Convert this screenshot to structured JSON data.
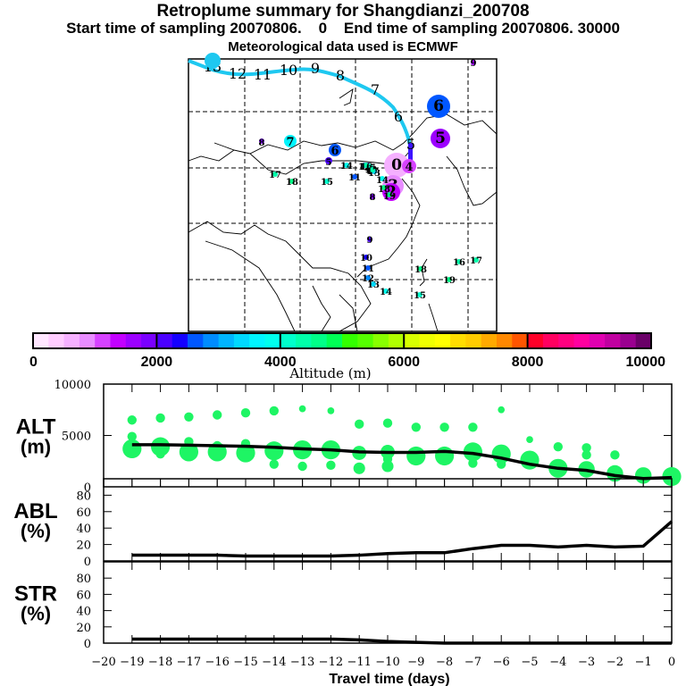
{
  "header": {
    "title": "Retroplume summary for Shangdianzi_200708",
    "subtitle": "Start time of sampling 20070806.    0    End time of sampling 20070806. 30000",
    "met_note": "Meteorological data used is ECMWF"
  },
  "colorbar": {
    "label": "Altitude (m)",
    "range": [
      0,
      10000
    ],
    "step": 250,
    "tick_labels": [
      "0",
      "2000",
      "4000",
      "6000",
      "8000",
      "10000"
    ],
    "colors": [
      "#ffe6ff",
      "#ffccff",
      "#f5b0ff",
      "#e88cff",
      "#d642ff",
      "#c200ff",
      "#9c00ff",
      "#7a00ff",
      "#4a00ff",
      "#1400ff",
      "#0057ff",
      "#008cff",
      "#00b5ff",
      "#00d9ff",
      "#00f5ff",
      "#00ffee",
      "#00ffcc",
      "#00ffaa",
      "#00ff88",
      "#00ff55",
      "#33ff00",
      "#55ff00",
      "#88ff00",
      "#b0ff00",
      "#d8ff00",
      "#f0ff00",
      "#ffff00",
      "#ffdd00",
      "#ffcc00",
      "#ffaa00",
      "#ff8800",
      "#ff5500",
      "#ff0028",
      "#ff0060",
      "#ff0080",
      "#ff00a0",
      "#e000b0",
      "#c000a0",
      "#9a0090",
      "#6a0068"
    ]
  },
  "map": {
    "region": "East Asia",
    "trajectory_labels": [
      "13",
      "12",
      "11",
      "10",
      "9",
      "8",
      "7",
      "6",
      "5"
    ],
    "clusters": [
      {
        "label": "6",
        "altitude_m": 2600,
        "size": "large"
      },
      {
        "label": "5",
        "altitude_m": 1500,
        "size": "large"
      },
      {
        "label": "0",
        "altitude_m": 500,
        "size": "large"
      },
      {
        "label": "4",
        "altitude_m": 1200,
        "size": "medium"
      },
      {
        "label": "3",
        "altitude_m": 800,
        "size": "large"
      },
      {
        "label": "2",
        "altitude_m": 1300,
        "size": "large"
      },
      {
        "label": "7",
        "altitude_m": 3700,
        "size": "medium"
      },
      {
        "label": "6",
        "altitude_m": 2700,
        "size": "medium"
      },
      {
        "label": "5",
        "altitude_m": 2200,
        "size": "medium"
      },
      {
        "label": "8",
        "altitude_m": 1800,
        "size": "small"
      },
      {
        "label": "9",
        "altitude_m": 2100,
        "size": "small"
      },
      {
        "label": "10",
        "altitude_m": 2300,
        "size": "small"
      },
      {
        "label": "11",
        "altitude_m": 2600,
        "size": "small"
      },
      {
        "label": "12",
        "altitude_m": 2800,
        "size": "small"
      },
      {
        "label": "13",
        "altitude_m": 3300,
        "size": "small"
      },
      {
        "label": "14",
        "altitude_m": 3900,
        "size": "small"
      },
      {
        "label": "15",
        "altitude_m": 4200,
        "size": "small"
      },
      {
        "label": "16",
        "altitude_m": 4300,
        "size": "small"
      },
      {
        "label": "17",
        "altitude_m": 4400,
        "size": "small"
      },
      {
        "label": "18",
        "altitude_m": 4500,
        "size": "small"
      },
      {
        "label": "19",
        "altitude_m": 4700,
        "size": "small"
      }
    ]
  },
  "chart_data": [
    {
      "type": "scatter",
      "panel": "ALT",
      "ylabel": "ALT\n(m)",
      "xlabel": "Travel time (days)",
      "xlim": [
        -20,
        0
      ],
      "ylim": [
        0,
        10000
      ],
      "yticks": [
        "0",
        "5000",
        "10000"
      ],
      "line": {
        "name": "mean altitude",
        "x": [
          -19,
          -18,
          -17,
          -16,
          -15,
          -14,
          -13,
          -12,
          -11,
          -10,
          -9,
          -8,
          -7,
          -6,
          -5,
          -4,
          -3,
          -2,
          -1,
          0
        ],
        "y": [
          4100,
          4100,
          4050,
          4000,
          3950,
          3850,
          3700,
          3600,
          3400,
          3350,
          3350,
          3450,
          3250,
          2800,
          2200,
          1800,
          1600,
          1100,
          800,
          900
        ]
      },
      "points": [
        {
          "x": -19,
          "y": 6500,
          "s": 1
        },
        {
          "x": -19,
          "y": 4900,
          "s": 1
        },
        {
          "x": -19,
          "y": 3700,
          "s": 3
        },
        {
          "x": -18,
          "y": 6700,
          "s": 1
        },
        {
          "x": -18,
          "y": 3900,
          "s": 3
        },
        {
          "x": -18,
          "y": 3200,
          "s": 1
        },
        {
          "x": -17,
          "y": 6800,
          "s": 1
        },
        {
          "x": -17,
          "y": 4400,
          "s": 1
        },
        {
          "x": -17,
          "y": 3400,
          "s": 3
        },
        {
          "x": -16,
          "y": 7000,
          "s": 1
        },
        {
          "x": -16,
          "y": 4000,
          "s": 1
        },
        {
          "x": -16,
          "y": 3400,
          "s": 3
        },
        {
          "x": -15,
          "y": 7200,
          "s": 1
        },
        {
          "x": -15,
          "y": 4200,
          "s": 1
        },
        {
          "x": -15,
          "y": 3300,
          "s": 3
        },
        {
          "x": -14,
          "y": 7400,
          "s": 1
        },
        {
          "x": -14,
          "y": 3500,
          "s": 3
        },
        {
          "x": -14,
          "y": 2200,
          "s": 1
        },
        {
          "x": -13,
          "y": 7600,
          "s": 0.5
        },
        {
          "x": -13,
          "y": 3600,
          "s": 3
        },
        {
          "x": -13,
          "y": 2000,
          "s": 1
        },
        {
          "x": -12,
          "y": 7400,
          "s": 0.5
        },
        {
          "x": -12,
          "y": 3600,
          "s": 3
        },
        {
          "x": -12,
          "y": 2100,
          "s": 1
        },
        {
          "x": -11,
          "y": 6100,
          "s": 1
        },
        {
          "x": -11,
          "y": 3300,
          "s": 2
        },
        {
          "x": -11,
          "y": 1800,
          "s": 1.5
        },
        {
          "x": -10,
          "y": 6200,
          "s": 1
        },
        {
          "x": -10,
          "y": 3400,
          "s": 2
        },
        {
          "x": -10,
          "y": 2700,
          "s": 1
        },
        {
          "x": -10,
          "y": 2000,
          "s": 1.5
        },
        {
          "x": -9,
          "y": 5800,
          "s": 1
        },
        {
          "x": -9,
          "y": 3000,
          "s": 3
        },
        {
          "x": -8,
          "y": 5800,
          "s": 1
        },
        {
          "x": -8,
          "y": 3000,
          "s": 3
        },
        {
          "x": -7,
          "y": 5800,
          "s": 1
        },
        {
          "x": -7,
          "y": 3400,
          "s": 3
        },
        {
          "x": -7,
          "y": 2300,
          "s": 1
        },
        {
          "x": -6,
          "y": 7500,
          "s": 0.5
        },
        {
          "x": -6,
          "y": 3200,
          "s": 3
        },
        {
          "x": -6,
          "y": 2200,
          "s": 1
        },
        {
          "x": -5,
          "y": 4600,
          "s": 0.5
        },
        {
          "x": -5,
          "y": 2600,
          "s": 3
        },
        {
          "x": -4,
          "y": 3900,
          "s": 1
        },
        {
          "x": -4,
          "y": 1800,
          "s": 3
        },
        {
          "x": -3,
          "y": 3800,
          "s": 1
        },
        {
          "x": -3,
          "y": 3100,
          "s": 1
        },
        {
          "x": -3,
          "y": 1700,
          "s": 2.5
        },
        {
          "x": -2,
          "y": 3100,
          "s": 1
        },
        {
          "x": -2,
          "y": 1300,
          "s": 2.5
        },
        {
          "x": -1,
          "y": 1100,
          "s": 2.5
        },
        {
          "x": 0,
          "y": 1000,
          "s": 3
        },
        {
          "x": 0,
          "y": 900,
          "s": 2
        }
      ],
      "point_color": "#1ef564"
    },
    {
      "type": "line",
      "panel": "ABL",
      "ylabel": "ABL\n(%)",
      "xlim": [
        -20,
        0
      ],
      "ylim": [
        0,
        100
      ],
      "yticks": [
        "0",
        "20",
        "40",
        "60",
        "80"
      ],
      "x": [
        -19,
        -18,
        -17,
        -16,
        -15,
        -14,
        -13,
        -12,
        -11,
        -10,
        -9,
        -8,
        -7,
        -6,
        -5,
        -4,
        -3,
        -2,
        -1,
        0
      ],
      "y": [
        7,
        7,
        7,
        7,
        6,
        6,
        6,
        6,
        7,
        9,
        10,
        10,
        15,
        19,
        19,
        17,
        19,
        17,
        18,
        48
      ]
    },
    {
      "type": "line",
      "panel": "STR",
      "ylabel": "STR\n(%)",
      "xlabel": "Travel time (days)",
      "xlim": [
        -20,
        0
      ],
      "ylim": [
        0,
        100
      ],
      "yticks": [
        "0",
        "20",
        "40",
        "60",
        "80"
      ],
      "xticks": [
        "-20",
        "-19",
        "-18",
        "-17",
        "-16",
        "-15",
        "-14",
        "-13",
        "-12",
        "-11",
        "-10",
        "-9",
        "-8",
        "-7",
        "-6",
        "-5",
        "-4",
        "-3",
        "-2",
        "-1",
        "0"
      ],
      "x": [
        -19,
        -18,
        -17,
        -16,
        -15,
        -14,
        -13,
        -12,
        -11,
        -10,
        -9,
        -8,
        -7,
        -6,
        -5,
        -4,
        -3,
        -2,
        -1,
        0
      ],
      "y": [
        5,
        5,
        5,
        5,
        5,
        5,
        5,
        5,
        4,
        2,
        1,
        0,
        0,
        0,
        0,
        0,
        0,
        0,
        0,
        0
      ]
    }
  ]
}
